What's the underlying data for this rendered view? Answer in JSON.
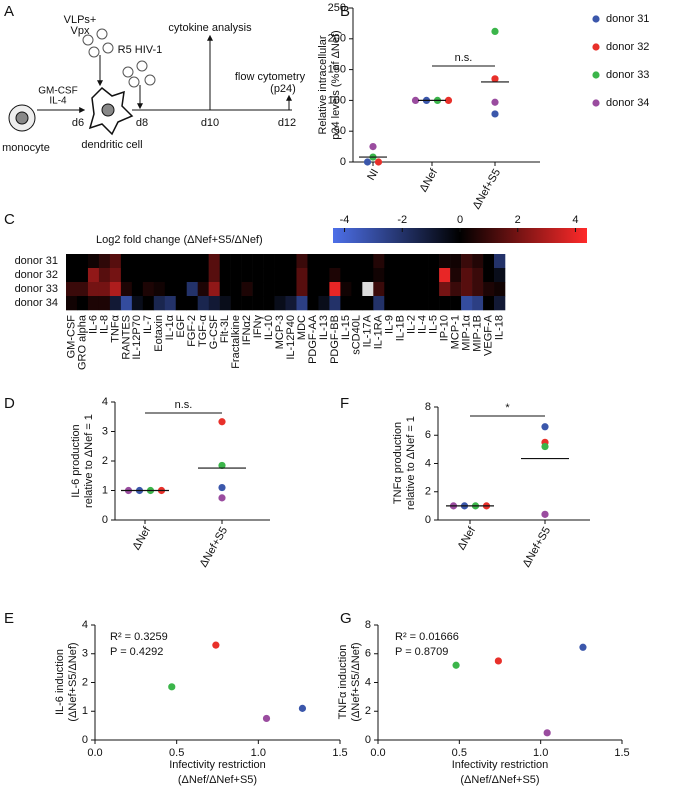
{
  "diagram": {
    "panel": "A",
    "labels": [
      "VLPs+",
      "Vpx",
      "R5 HIV-1",
      "cytokine analysis",
      "flow cytometry",
      "(p24)",
      "GM-CSF",
      "IL-4",
      "monocyte",
      "d6",
      "dendritic cell",
      "d8",
      "d10",
      "d12"
    ]
  },
  "chart_data": [
    {
      "type": "scatter",
      "panel": "B",
      "ylabel": [
        "Relative intracellular",
        "p24 levels (% of ΔNef)"
      ],
      "categories": [
        "NI",
        "ΔNef",
        "ΔNef+S5"
      ],
      "series": [
        {
          "name": "donor 31",
          "color": "#3b57ab",
          "values": [
            0,
            100,
            78
          ]
        },
        {
          "name": "donor 32",
          "color": "#e8302a",
          "values": [
            0,
            100,
            135
          ]
        },
        {
          "name": "donor 33",
          "color": "#3bb54a",
          "values": [
            8,
            100,
            212
          ]
        },
        {
          "name": "donor 34",
          "color": "#9a4c9f",
          "values": [
            25,
            100,
            97
          ]
        }
      ],
      "means": [
        8,
        100,
        130
      ],
      "significance": "n.s.",
      "ylim": [
        0,
        250
      ],
      "yticks": [
        0,
        50,
        100,
        150,
        200,
        250
      ]
    },
    {
      "type": "heatmap",
      "panel": "C",
      "title": "Log2 fold change (ΔNef+S5/ΔNef)",
      "rows": [
        "donor 31",
        "donor 32",
        "donor 33",
        "donor 34"
      ],
      "columns": [
        "GM-CSF",
        "GRO alpha",
        "IL-6",
        "IL-8",
        "TNFα",
        "RANTES",
        "IL-12P70",
        "IL-7",
        "Eotaxin",
        "IL-1α",
        "EGF",
        "FGF-2",
        "TGF-α",
        "G-CSF",
        "Flt-3L",
        "Fractalkine",
        "IFNα2",
        "IFNγ",
        "IL-10",
        "MCP-3",
        "IL-12P40",
        "MDC",
        "PDGF-AA",
        "IL-13",
        "PDGF-BB",
        "IL-15",
        "sCD40L",
        "IL-17A",
        "IL-1RA",
        "IL-9",
        "IL-1B",
        "IL-2",
        "IL-4",
        "IL-5",
        "IP-10",
        "MCP-1",
        "MIP-1α",
        "MIP-1B",
        "VEGF-A",
        "IL-18"
      ],
      "values": [
        [
          0,
          0,
          0.3,
          0.8,
          1.5,
          0,
          0,
          0,
          0,
          0,
          0,
          0,
          0,
          1.5,
          0,
          0,
          0,
          0,
          0,
          0,
          0,
          1,
          0,
          0,
          0,
          0,
          0,
          0,
          0.6,
          0,
          0,
          0,
          0,
          0,
          0.3,
          0.3,
          1,
          0.6,
          0,
          -2
        ],
        [
          0,
          0,
          2.5,
          1.5,
          2,
          0,
          0,
          0,
          0,
          0,
          0,
          0,
          0,
          1.5,
          0,
          0,
          0,
          0,
          0,
          0,
          0,
          1.5,
          0,
          0,
          0.5,
          0,
          0,
          0,
          0.3,
          0,
          0,
          0,
          0,
          0,
          4,
          0.5,
          1.5,
          1,
          0,
          -0.5
        ],
        [
          1,
          1,
          2,
          2,
          3,
          0.5,
          0,
          0.5,
          0.3,
          0,
          0,
          -2,
          0.5,
          2.5,
          0,
          0,
          0.5,
          0,
          0,
          0,
          0,
          1.5,
          0,
          0,
          4,
          0.3,
          0,
          null,
          1,
          0,
          0,
          0,
          0,
          0,
          2,
          1,
          1.5,
          1,
          0.5,
          0.3
        ],
        [
          0.3,
          0,
          0.5,
          0.5,
          -1,
          -3,
          -0.5,
          0,
          -1.5,
          -2,
          0,
          0,
          -1.5,
          -1,
          -0.5,
          0,
          0,
          0,
          0,
          -0.5,
          -1,
          -2.5,
          0,
          -0.5,
          -2,
          0,
          0,
          0,
          -2,
          0,
          0,
          0,
          0,
          0,
          0,
          0,
          -3,
          -2.5,
          0,
          -1
        ]
      ],
      "zlim": [
        -4.4,
        4.4
      ],
      "zticks": [
        -4,
        -2,
        0,
        2,
        4
      ],
      "colormap": [
        "#4d6fe8",
        "#000000",
        "#ff2a2a"
      ],
      "null_color": "#dcdcdc"
    },
    {
      "type": "scatter",
      "panel": "D",
      "ylabel": [
        "IL-6 production",
        "relative to ΔNef = 1"
      ],
      "categories": [
        "ΔNef",
        "ΔNef+S5"
      ],
      "series": [
        {
          "color": "#3b57ab",
          "values": [
            1,
            1.1
          ]
        },
        {
          "color": "#e8302a",
          "values": [
            1,
            3.33
          ]
        },
        {
          "color": "#3bb54a",
          "values": [
            1,
            1.85
          ]
        },
        {
          "color": "#9a4c9f",
          "values": [
            1,
            0.75
          ]
        }
      ],
      "means": [
        1,
        1.76
      ],
      "significance": "n.s.",
      "ylim": [
        0,
        4
      ],
      "yticks": [
        0,
        1,
        2,
        3,
        4
      ]
    },
    {
      "type": "scatter",
      "panel": "E",
      "ylabel": [
        "IL-6 induction",
        "(ΔNef+S5/ΔNef)"
      ],
      "xlabel": [
        "Infectivity restriction",
        "(ΔNef/ΔNef+S5)"
      ],
      "x": [
        1.27,
        0.74,
        0.47,
        1.05
      ],
      "values": [
        1.1,
        3.3,
        1.85,
        0.75
      ],
      "colors": [
        "#3b57ab",
        "#e8302a",
        "#3bb54a",
        "#9a4c9f"
      ],
      "annotations": [
        "R² = 0.3259",
        "P = 0.4292"
      ],
      "xlim": [
        0,
        1.5
      ],
      "xticks": [
        {
          "value": 0,
          "label": "0.0"
        },
        0.5,
        {
          "value": 1,
          "label": "1.0"
        },
        1.5
      ],
      "ylim": [
        0,
        4
      ],
      "yticks": [
        0,
        1,
        2,
        3,
        4
      ]
    },
    {
      "type": "scatter",
      "panel": "F",
      "ylabel": [
        "TNFα production",
        "relative to ΔNef = 1"
      ],
      "categories": [
        "ΔNef",
        "ΔNef+S5"
      ],
      "series": [
        {
          "color": "#3b57ab",
          "values": [
            1,
            6.6
          ]
        },
        {
          "color": "#e8302a",
          "values": [
            1,
            5.5
          ]
        },
        {
          "color": "#3bb54a",
          "values": [
            1,
            5.2
          ]
        },
        {
          "color": "#9a4c9f",
          "values": [
            1,
            0.4
          ]
        }
      ],
      "means": [
        1,
        4.35
      ],
      "significance": "*",
      "ylim": [
        0,
        8
      ],
      "yticks": [
        0,
        2,
        4,
        6,
        8
      ]
    },
    {
      "type": "scatter",
      "panel": "G",
      "ylabel": [
        "TNFα induction",
        "(ΔNef+S5/ΔNef)"
      ],
      "xlabel": [
        "Infectivity restriction",
        "(ΔNef/ΔNef+S5)"
      ],
      "x": [
        1.26,
        0.74,
        0.48,
        1.04
      ],
      "values": [
        6.45,
        5.5,
        5.2,
        0.5
      ],
      "colors": [
        "#3b57ab",
        "#e8302a",
        "#3bb54a",
        "#9a4c9f"
      ],
      "annotations": [
        "R² = 0.01666",
        "P = 0.8709"
      ],
      "xlim": [
        0,
        1.5
      ],
      "xticks": [
        {
          "value": 0,
          "label": "0.0"
        },
        0.5,
        {
          "value": 1,
          "label": "1.0"
        },
        1.5
      ],
      "ylim": [
        0,
        8
      ],
      "yticks": [
        0,
        2,
        4,
        6,
        8
      ]
    }
  ]
}
